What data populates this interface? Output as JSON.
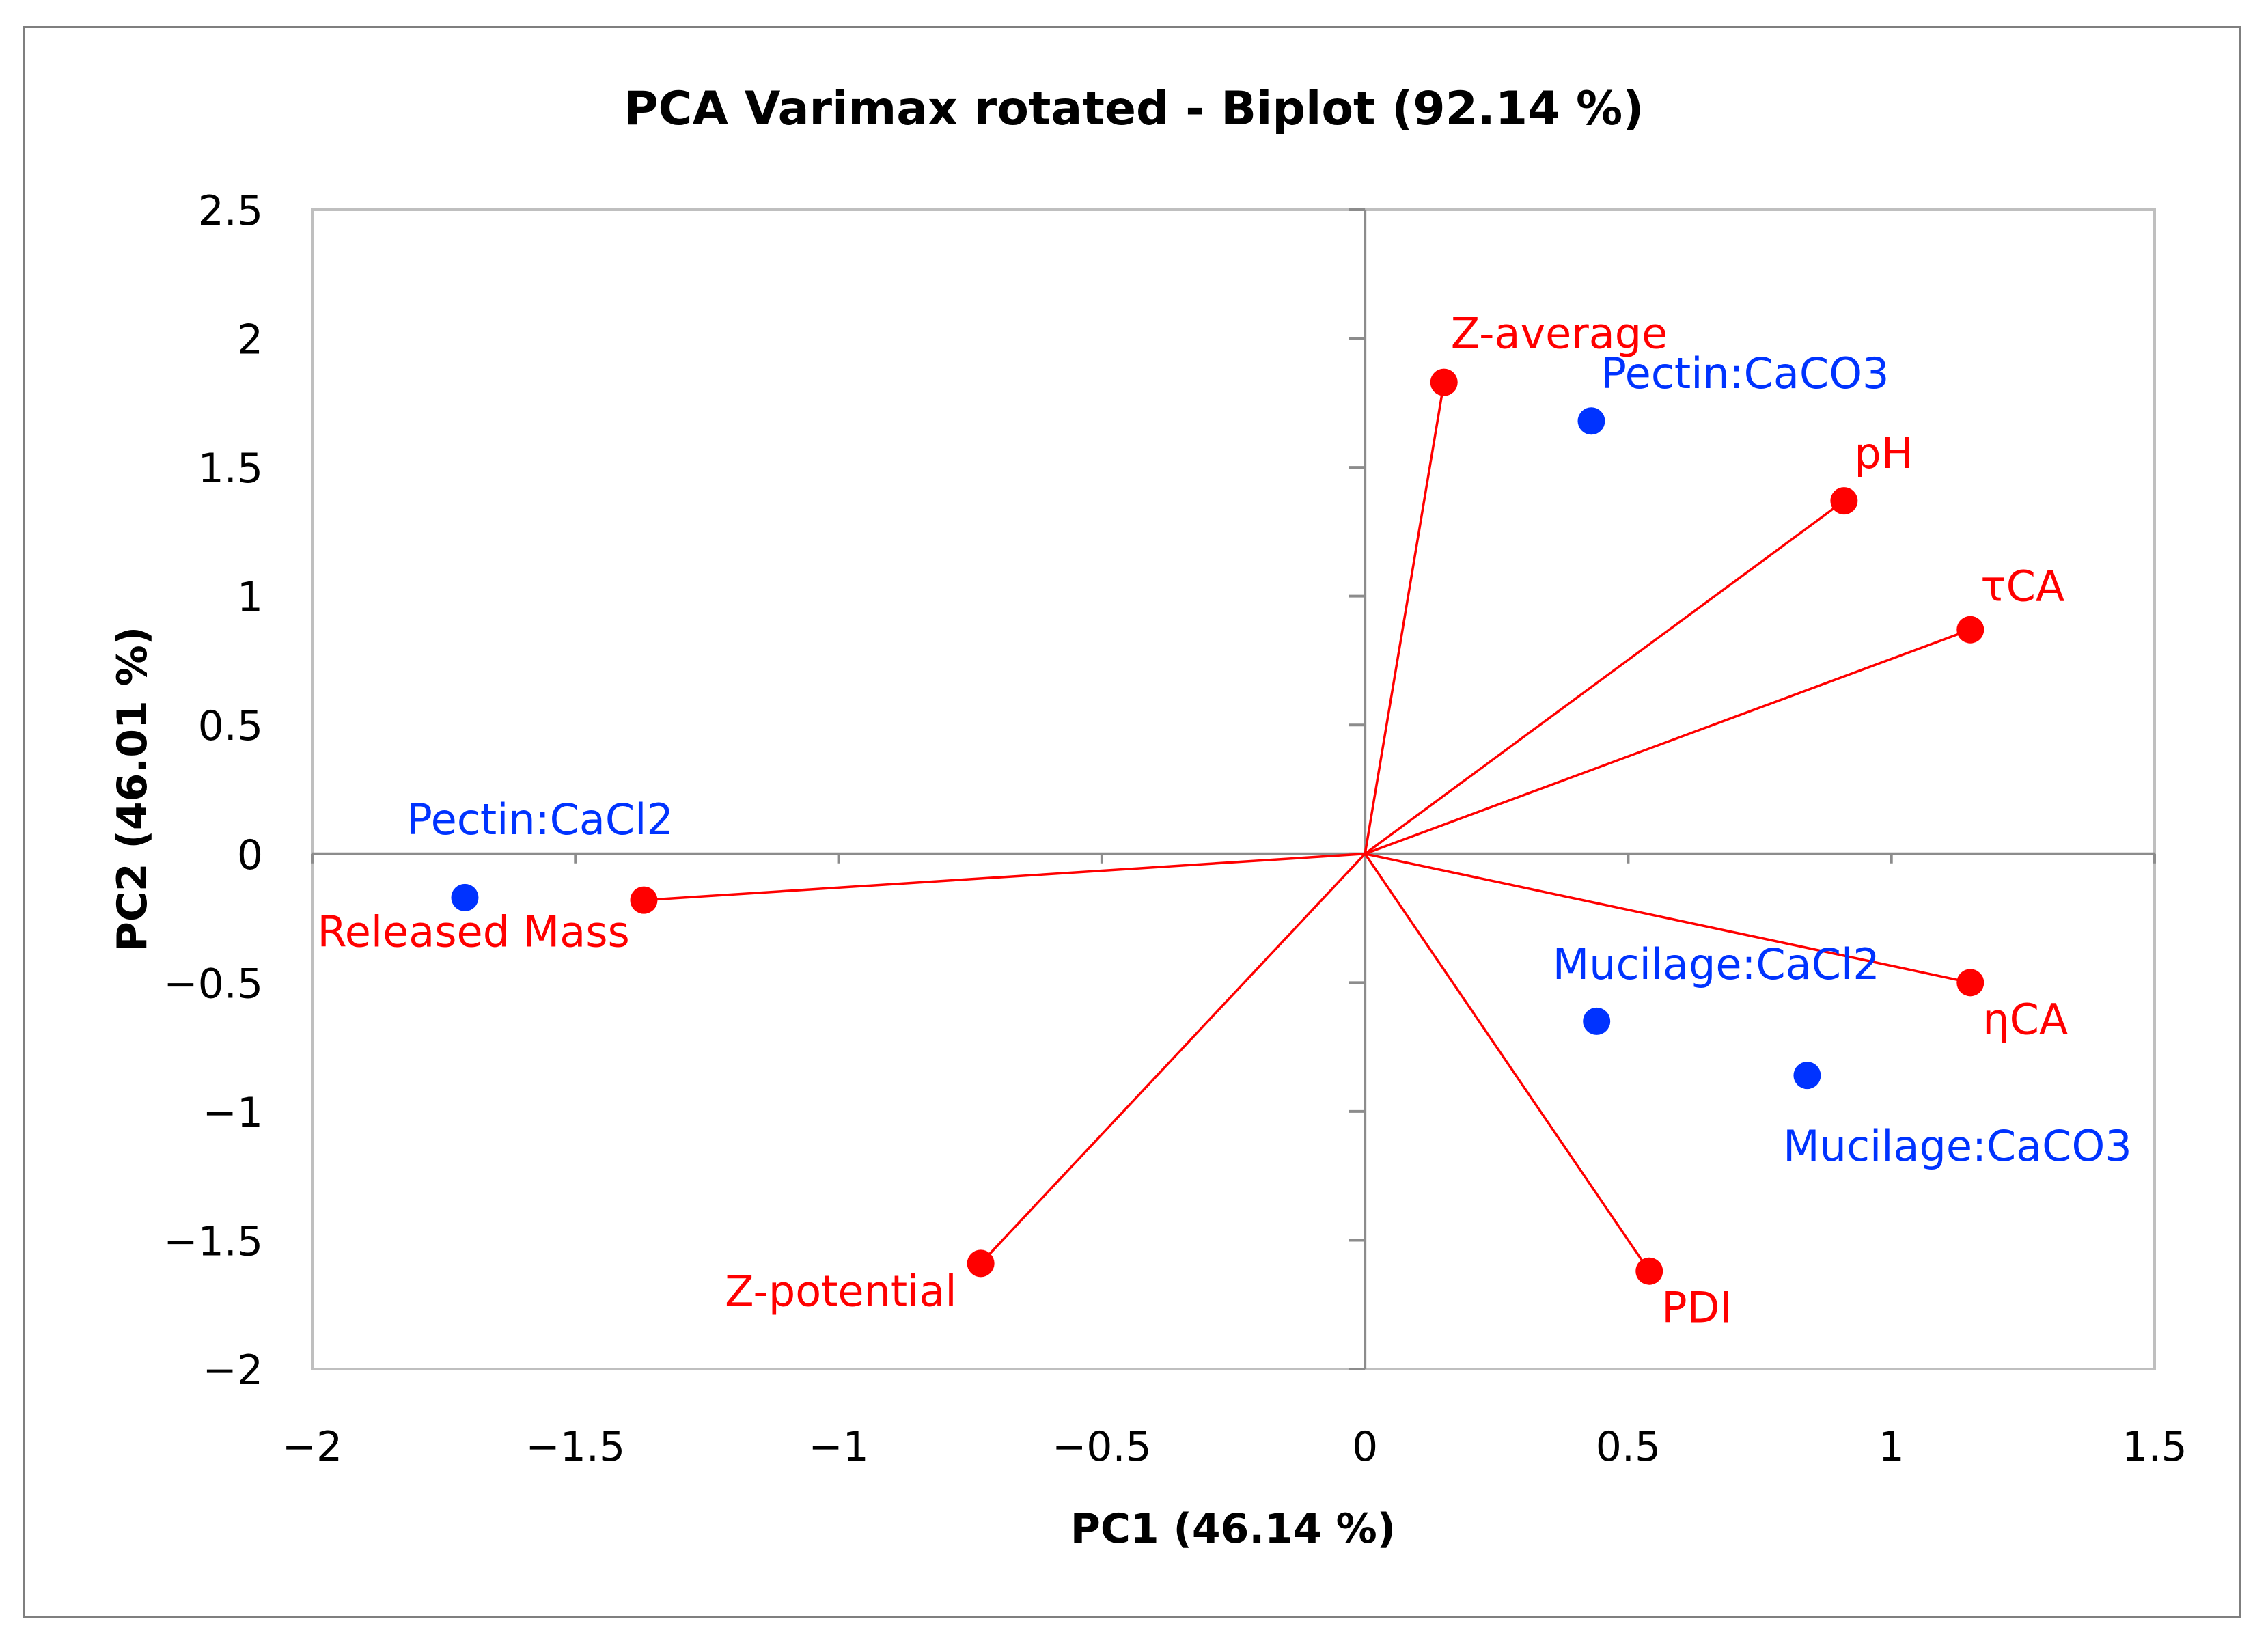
{
  "chart_data": {
    "type": "scatter",
    "title": "PCA Varimax rotated - Biplot (92.14 %)",
    "xlabel": "PC1 (46.14 %)",
    "ylabel": "PC2 (46.01 %)",
    "xlim": [
      -2,
      1.5
    ],
    "ylim": [
      -2,
      2.5
    ],
    "x_ticks": [
      -2,
      -1.5,
      -1,
      -0.5,
      0,
      0.5,
      1,
      1.5
    ],
    "y_ticks": [
      -2,
      -1.5,
      -1,
      -0.5,
      0,
      0.5,
      1,
      1.5,
      2,
      2.5
    ],
    "x_tick_labels": [
      "−2",
      "−1.5",
      "−1",
      "−0.5",
      "0",
      "0.5",
      "1",
      "1.5"
    ],
    "y_tick_labels": [
      "−2",
      "−1.5",
      "−1",
      "−0.5",
      "0",
      "0.5",
      "1",
      "1.5",
      "2",
      "2.5"
    ],
    "grid": false,
    "series": [
      {
        "name": "Variables",
        "color": "#ff0000",
        "kind": "loading-vectors",
        "points": [
          {
            "label": "Z-average",
            "x": 0.15,
            "y": 1.83,
            "label_anchor": "right-above"
          },
          {
            "label": "pH",
            "x": 0.91,
            "y": 1.37,
            "label_anchor": "right-above"
          },
          {
            "label": "τCA",
            "x": 1.15,
            "y": 0.87,
            "label_anchor": "right-above"
          },
          {
            "label": "ηCA",
            "x": 1.15,
            "y": -0.5,
            "label_anchor": "right-below"
          },
          {
            "label": "PDI",
            "x": 0.54,
            "y": -1.62,
            "label_anchor": "right-below"
          },
          {
            "label": "Z-potential",
            "x": -0.73,
            "y": -1.59,
            "label_anchor": "left"
          },
          {
            "label": "Released Mass",
            "x": -1.37,
            "y": -0.18,
            "label_anchor": "below"
          }
        ]
      },
      {
        "name": "Observations",
        "color": "#0033ff",
        "kind": "scores",
        "points": [
          {
            "label": "Pectin:CaCO3",
            "x": 0.43,
            "y": 1.68,
            "label_anchor": "right-above"
          },
          {
            "label": "Pectin:CaCl2",
            "x": -1.71,
            "y": -0.17,
            "label_anchor": "above"
          },
          {
            "label": "Mucilage:CaCl2",
            "x": 0.44,
            "y": -0.65,
            "label_anchor": "above"
          },
          {
            "label": "Mucilage:CaCO3",
            "x": 0.84,
            "y": -0.86,
            "label_anchor": "below"
          }
        ]
      }
    ]
  }
}
